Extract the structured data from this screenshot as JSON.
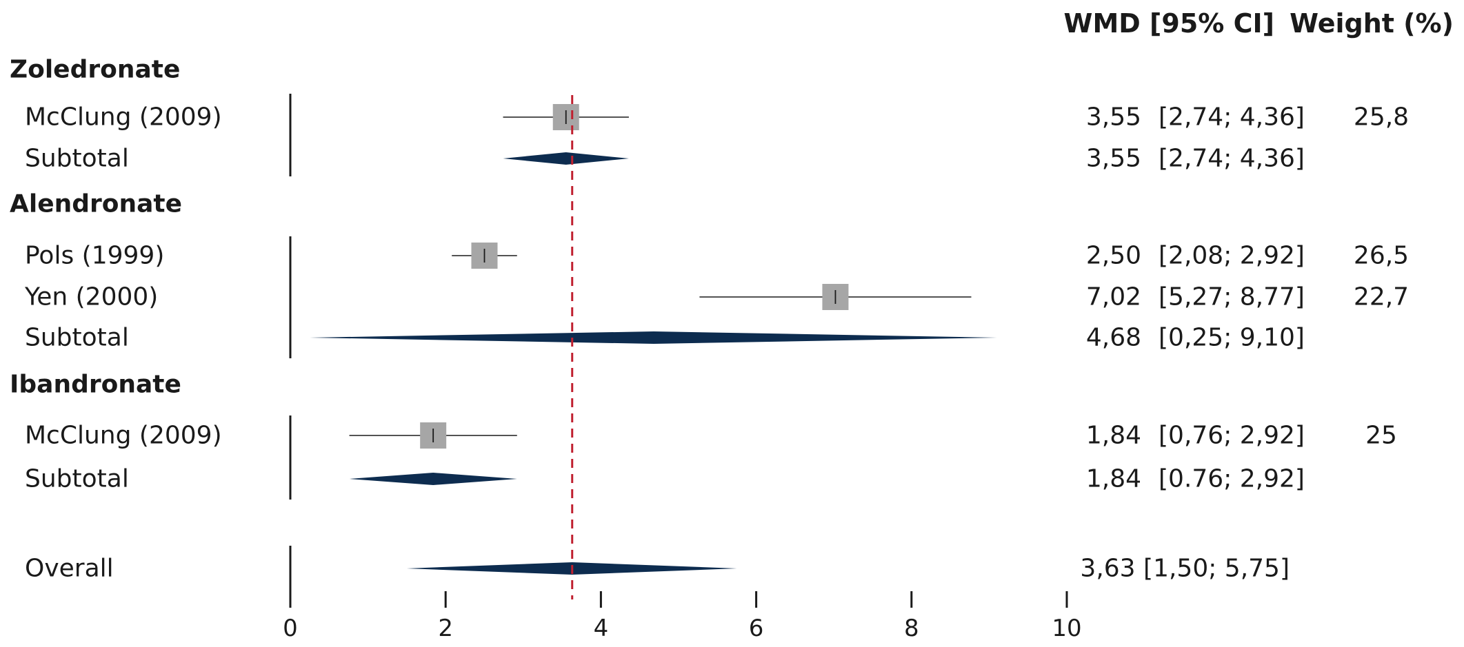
{
  "chart_data": {
    "type": "forest",
    "columns": {
      "estimate": "WMD [95% CI]",
      "weight": "Weight (%)"
    },
    "xlim": [
      0,
      10
    ],
    "xticks": [
      0,
      2,
      4,
      6,
      8,
      10
    ],
    "tick_labels": [
      "0",
      "2",
      "4",
      "6",
      "8",
      "10"
    ],
    "reference_line": 3.63,
    "colors": {
      "square": "#a6a6a6",
      "diamond": "#0d2c4f",
      "reference": "#c0202f",
      "line": "#1a1a1a"
    },
    "groups": [
      {
        "name": "Zoledronate",
        "studies": [
          {
            "label": "McClung (2009)",
            "estimate": 3.55,
            "lower": 2.74,
            "upper": 4.36,
            "est_text": "3,55",
            "ci_text": "[2,74; 4,36]",
            "weight": "25,8"
          }
        ],
        "subtotal": {
          "label": "Subtotal",
          "estimate": 3.55,
          "lower": 2.74,
          "upper": 4.36,
          "est_text": "3,55",
          "ci_text": "[2,74; 4,36]"
        }
      },
      {
        "name": "Alendronate",
        "studies": [
          {
            "label": "Pols (1999)",
            "estimate": 2.5,
            "lower": 2.08,
            "upper": 2.92,
            "est_text": "2,50",
            "ci_text": "[2,08; 2,92]",
            "weight": "26,5"
          },
          {
            "label": "Yen (2000)",
            "estimate": 7.02,
            "lower": 5.27,
            "upper": 8.77,
            "est_text": "7,02",
            "ci_text": "[5,27; 8,77]",
            "weight": "22,7"
          }
        ],
        "subtotal": {
          "label": "Subtotal",
          "estimate": 4.68,
          "lower": 0.25,
          "upper": 9.1,
          "est_text": "4,68",
          "ci_text": "[0,25; 9,10]"
        }
      },
      {
        "name": "Ibandronate",
        "studies": [
          {
            "label": "McClung (2009)",
            "estimate": 1.84,
            "lower": 0.76,
            "upper": 2.92,
            "est_text": "1,84",
            "ci_text": "[0,76; 2,92]",
            "weight": "25"
          }
        ],
        "subtotal": {
          "label": "Subtotal",
          "estimate": 1.84,
          "lower": 0.76,
          "upper": 2.92,
          "est_text": "1,84",
          "ci_text": "[0.76; 2,92]"
        }
      }
    ],
    "overall": {
      "label": "Overall",
      "estimate": 3.63,
      "lower": 1.5,
      "upper": 5.75,
      "text": "3,63 [1,50; 5,75]"
    }
  }
}
